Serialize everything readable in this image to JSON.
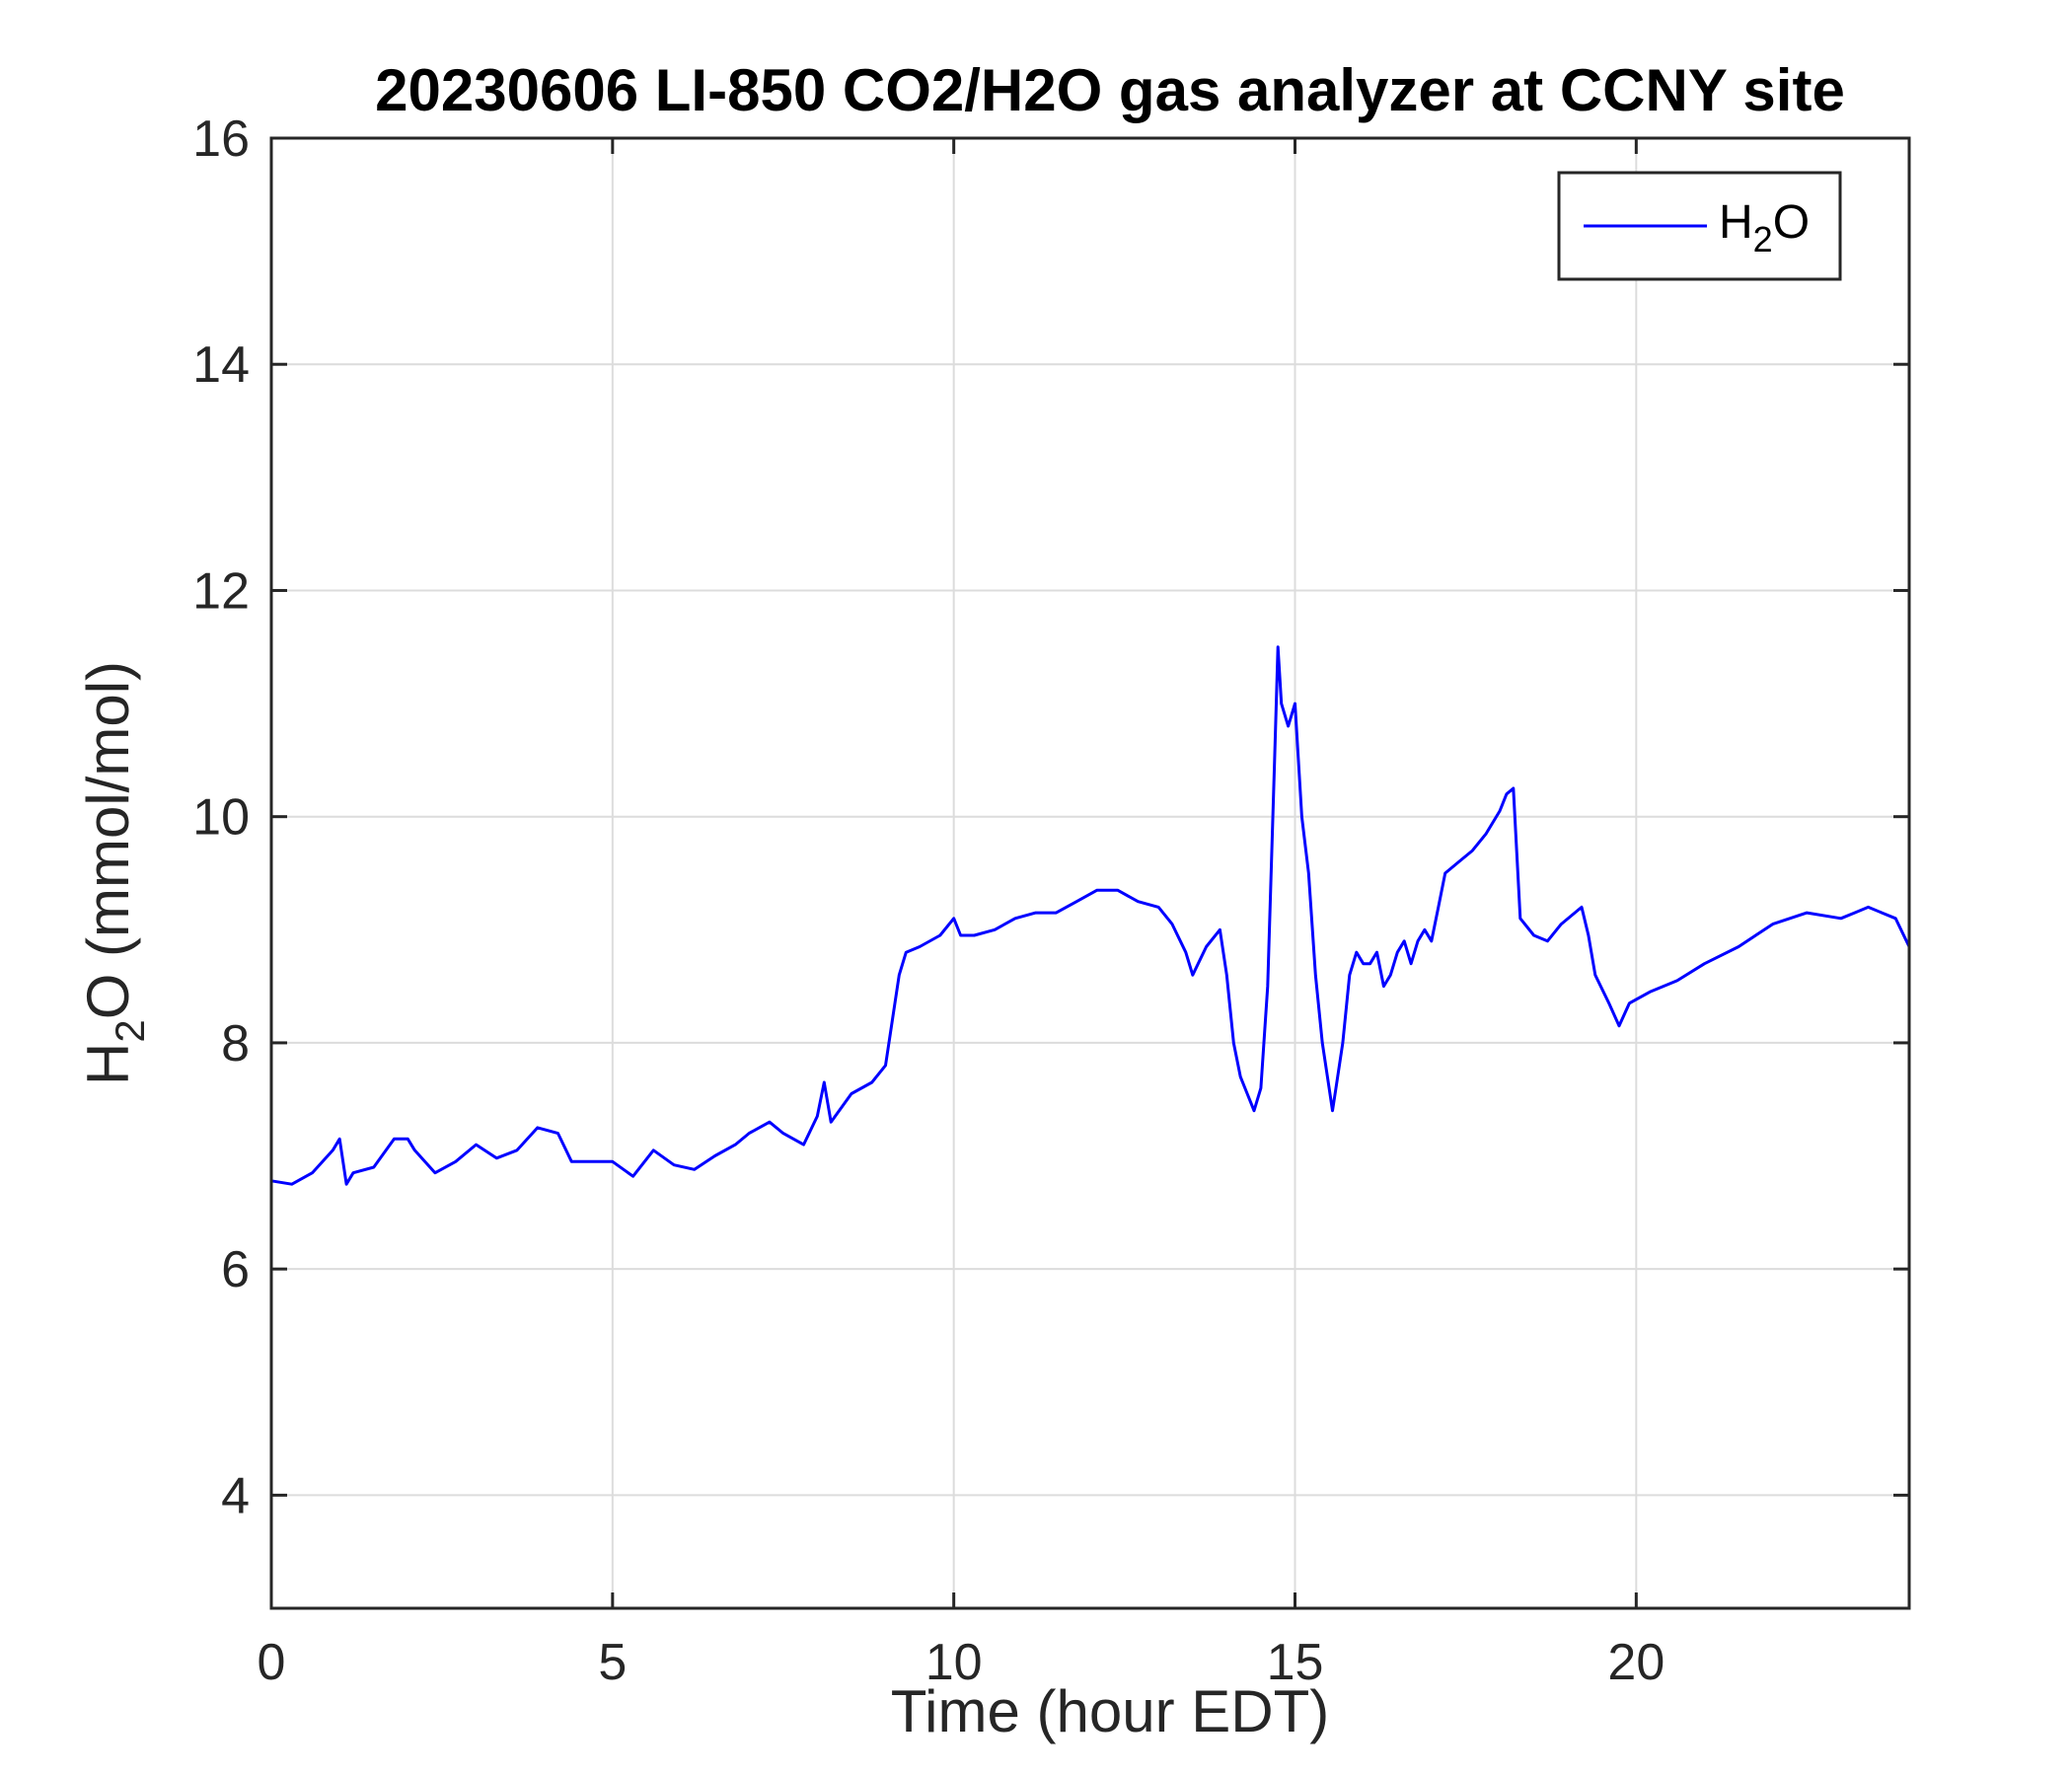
{
  "chart_data": {
    "type": "line",
    "title": "20230606 LI-850 CO2/H2O gas analyzer at CCNY site",
    "xlabel": "Time (hour EDT)",
    "ylabel": {
      "main": "H",
      "sub": "2",
      "rest": "O (mmol/mol)"
    },
    "xlim": [
      0,
      24
    ],
    "ylim": [
      3,
      16
    ],
    "xticks": [
      0,
      5,
      10,
      15,
      20
    ],
    "yticks": [
      4,
      6,
      8,
      10,
      12,
      14,
      16
    ],
    "grid": true,
    "legend": {
      "position": "top-right",
      "entries": [
        {
          "main": "H",
          "sub": "2",
          "rest": "O"
        }
      ]
    },
    "series": [
      {
        "name": "H2O",
        "color": "#0000ff",
        "x": [
          0,
          0.3,
          0.6,
          0.9,
          1.0,
          1.1,
          1.2,
          1.5,
          1.8,
          2.0,
          2.1,
          2.4,
          2.7,
          3.0,
          3.3,
          3.6,
          3.9,
          4.2,
          4.4,
          4.7,
          5.0,
          5.3,
          5.6,
          5.9,
          6.2,
          6.5,
          6.8,
          7.0,
          7.3,
          7.5,
          7.8,
          8.0,
          8.1,
          8.2,
          8.5,
          8.8,
          9.0,
          9.1,
          9.2,
          9.3,
          9.5,
          9.8,
          10.0,
          10.1,
          10.3,
          10.6,
          10.9,
          11.2,
          11.5,
          11.8,
          12.1,
          12.4,
          12.7,
          13.0,
          13.2,
          13.4,
          13.5,
          13.7,
          13.9,
          14.0,
          14.1,
          14.2,
          14.3,
          14.4,
          14.5,
          14.6,
          14.7,
          14.75,
          14.8,
          14.9,
          15.0,
          15.1,
          15.2,
          15.3,
          15.4,
          15.5,
          15.55,
          15.6,
          15.7,
          15.8,
          15.9,
          16.0,
          16.1,
          16.2,
          16.3,
          16.4,
          16.5,
          16.6,
          16.7,
          16.8,
          16.9,
          17.0,
          17.1,
          17.2,
          17.4,
          17.6,
          17.8,
          18.0,
          18.1,
          18.2,
          18.3,
          18.5,
          18.7,
          18.9,
          19.1,
          19.2,
          19.3,
          19.4,
          19.6,
          19.75,
          19.9,
          20.2,
          20.6,
          21.0,
          21.5,
          22.0,
          22.5,
          23.0,
          23.2,
          23.4,
          23.6,
          23.8,
          24.0
        ],
        "y": [
          6.78,
          6.75,
          6.85,
          7.05,
          7.15,
          6.75,
          6.85,
          6.9,
          7.15,
          7.15,
          7.05,
          6.85,
          6.95,
          7.1,
          6.98,
          7.05,
          7.25,
          7.2,
          6.95,
          6.95,
          6.95,
          6.82,
          7.05,
          6.92,
          6.88,
          7.0,
          7.1,
          7.2,
          7.3,
          7.2,
          7.1,
          7.35,
          7.65,
          7.3,
          7.55,
          7.65,
          7.8,
          8.2,
          8.6,
          8.8,
          8.85,
          8.95,
          9.1,
          8.95,
          8.95,
          9.0,
          9.1,
          9.15,
          9.15,
          9.25,
          9.35,
          9.35,
          9.25,
          9.2,
          9.05,
          8.8,
          8.6,
          8.85,
          9.0,
          8.6,
          8.0,
          7.7,
          7.55,
          7.4,
          7.6,
          8.5,
          10.5,
          11.5,
          11.0,
          10.8,
          11.0,
          10.0,
          9.5,
          8.6,
          8.0,
          7.6,
          7.4,
          7.6,
          8.0,
          8.6,
          8.8,
          8.7,
          8.7,
          8.8,
          8.5,
          8.6,
          8.8,
          8.9,
          8.7,
          8.9,
          9.0,
          8.9,
          9.2,
          9.5,
          9.6,
          9.7,
          9.85,
          10.05,
          10.2,
          10.25,
          9.1,
          8.95,
          8.9,
          9.05,
          9.15,
          9.2,
          8.95,
          8.6,
          8.35,
          8.15,
          8.35,
          8.45,
          8.55,
          8.7,
          8.85,
          9.05,
          9.15,
          9.1,
          9.15,
          9.2,
          9.15,
          9.1,
          8.85
        ]
      }
    ]
  }
}
